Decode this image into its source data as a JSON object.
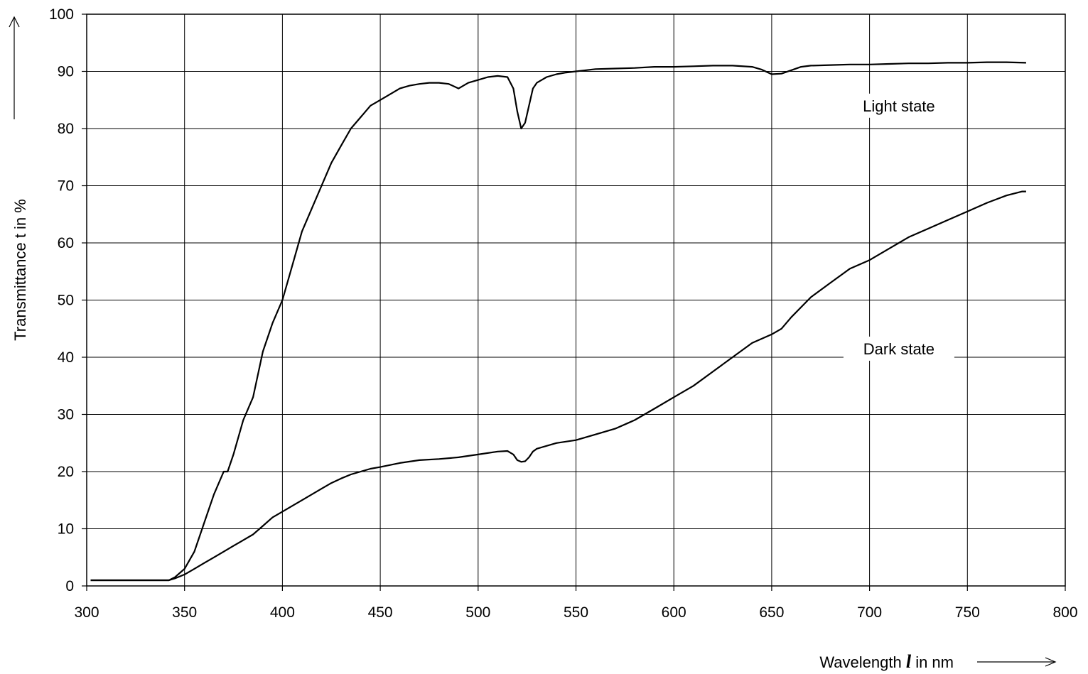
{
  "chart_data": {
    "type": "line",
    "title": "",
    "xlabel_prefix": "Wavelength ",
    "xlabel_symbol": "l",
    "xlabel_suffix": "  in nm",
    "ylabel": "Transmittance t  in %",
    "xlim": [
      300,
      800
    ],
    "ylim": [
      0,
      100
    ],
    "x_ticks": [
      300,
      350,
      400,
      450,
      500,
      550,
      600,
      650,
      700,
      750,
      800
    ],
    "y_ticks": [
      0,
      10,
      20,
      30,
      40,
      50,
      60,
      70,
      80,
      90,
      100
    ],
    "grid": true,
    "annotations": [
      {
        "text": "Light state",
        "series": "light"
      },
      {
        "text": "Dark state",
        "series": "dark"
      }
    ],
    "series": [
      {
        "id": "light",
        "x": [
          302,
          320,
          335,
          342,
          345,
          350,
          355,
          360,
          365,
          370,
          372,
          375,
          380,
          385,
          390,
          395,
          400,
          405,
          410,
          415,
          420,
          425,
          430,
          435,
          440,
          445,
          450,
          455,
          460,
          465,
          470,
          475,
          480,
          485,
          490,
          495,
          500,
          505,
          510,
          515,
          518,
          520,
          522,
          524,
          526,
          528,
          530,
          535,
          540,
          545,
          550,
          560,
          570,
          580,
          590,
          600,
          610,
          620,
          630,
          640,
          645,
          650,
          655,
          660,
          665,
          670,
          680,
          690,
          700,
          710,
          720,
          730,
          740,
          750,
          760,
          770,
          780
        ],
        "y": [
          1,
          1,
          1,
          1,
          1.5,
          3,
          6,
          11,
          16,
          20,
          20,
          23,
          29,
          33,
          41,
          46,
          50,
          56,
          62,
          66,
          70,
          74,
          77,
          80,
          82,
          84,
          85,
          86,
          87,
          87.5,
          87.8,
          88,
          88,
          87.8,
          87,
          88,
          88.5,
          89,
          89.2,
          89,
          87,
          83,
          80,
          81,
          84,
          87,
          88,
          89,
          89.5,
          89.8,
          90,
          90.4,
          90.5,
          90.6,
          90.8,
          90.8,
          90.9,
          91,
          91,
          90.8,
          90.3,
          89.5,
          89.6,
          90.2,
          90.8,
          91,
          91.1,
          91.2,
          91.2,
          91.3,
          91.4,
          91.4,
          91.5,
          91.5,
          91.6,
          91.6,
          91.5
        ]
      },
      {
        "id": "dark",
        "x": [
          302,
          320,
          335,
          342,
          345,
          350,
          355,
          360,
          365,
          370,
          375,
          380,
          385,
          390,
          395,
          400,
          405,
          410,
          415,
          420,
          425,
          430,
          435,
          440,
          445,
          450,
          460,
          470,
          480,
          490,
          500,
          510,
          515,
          518,
          520,
          522,
          524,
          526,
          528,
          530,
          540,
          550,
          560,
          570,
          580,
          590,
          600,
          610,
          620,
          630,
          640,
          650,
          655,
          660,
          670,
          680,
          690,
          700,
          710,
          720,
          730,
          740,
          750,
          760,
          770,
          778,
          780
        ],
        "y": [
          1,
          1,
          1,
          1,
          1.3,
          2,
          3,
          4,
          5,
          6,
          7,
          8,
          9,
          10.5,
          12,
          13,
          14,
          15,
          16,
          17,
          18,
          18.8,
          19.5,
          20,
          20.5,
          20.8,
          21.5,
          22,
          22.2,
          22.5,
          23,
          23.5,
          23.6,
          23,
          22,
          21.7,
          21.8,
          22.5,
          23.5,
          24,
          25,
          25.5,
          26.5,
          27.5,
          29,
          31,
          33,
          35,
          37.5,
          40,
          42.5,
          44,
          45,
          47,
          50.5,
          53,
          55.5,
          57,
          59,
          61,
          62.5,
          64,
          65.5,
          67,
          68.3,
          69,
          69
        ]
      }
    ]
  }
}
